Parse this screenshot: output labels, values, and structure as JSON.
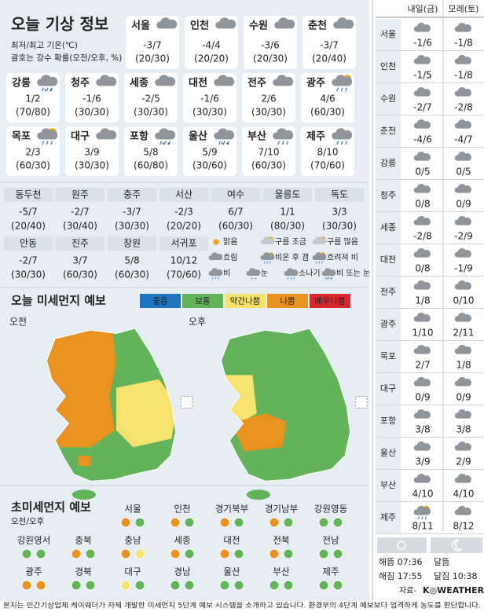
{
  "header": {
    "title": "오늘 기상 정보",
    "note1": "최저/최고 기온(℃)",
    "note2": "괄호는 강수 확률(오전/오후, %)"
  },
  "cities": [
    {
      "name": "서울",
      "temp": "-3/7",
      "rain": "(20/30)",
      "icon": "흐림"
    },
    {
      "name": "인천",
      "temp": "-4/4",
      "rain": "(20/20)",
      "icon": "흐림"
    },
    {
      "name": "수원",
      "temp": "-3/6",
      "rain": "(20/30)",
      "icon": "흐림"
    },
    {
      "name": "춘천",
      "temp": "-3/7",
      "rain": "(20/40)",
      "icon": "흐림"
    },
    {
      "name": "강릉",
      "temp": "1/2",
      "rain": "(70/80)",
      "icon": "비 또는 눈"
    },
    {
      "name": "청주",
      "temp": "-1/6",
      "rain": "(30/30)",
      "icon": "흐림"
    },
    {
      "name": "세종",
      "temp": "-2/5",
      "rain": "(30/30)",
      "icon": "흐림"
    },
    {
      "name": "대전",
      "temp": "-1/6",
      "rain": "(30/30)",
      "icon": "흐림"
    },
    {
      "name": "전주",
      "temp": "2/6",
      "rain": "(30/30)",
      "icon": "흐림"
    },
    {
      "name": "광주",
      "temp": "4/6",
      "rain": "(60/30)",
      "icon": "흐려져 비"
    },
    {
      "name": "목포",
      "temp": "2/3",
      "rain": "(60/30)",
      "icon": "흐려져 비"
    },
    {
      "name": "대구",
      "temp": "3/9",
      "rain": "(30/30)",
      "icon": "흐림"
    },
    {
      "name": "포항",
      "temp": "5/8",
      "rain": "(60/80)",
      "icon": "비 또는 눈"
    },
    {
      "name": "울산",
      "temp": "5/9",
      "rain": "(30/60)",
      "icon": "비 또는 눈"
    },
    {
      "name": "부산",
      "temp": "7/10",
      "rain": "(60/30)",
      "icon": "비"
    },
    {
      "name": "제주",
      "temp": "8/10",
      "rain": "(70/60)",
      "icon": "비"
    }
  ],
  "small_cities": [
    {
      "name": "동두천",
      "temp": "-5/7",
      "rain": "(20/40)"
    },
    {
      "name": "원주",
      "temp": "-2/7",
      "rain": "(30/40)"
    },
    {
      "name": "충주",
      "temp": "-3/7",
      "rain": "(30/30)"
    },
    {
      "name": "서산",
      "temp": "-2/3",
      "rain": "(20/20)"
    },
    {
      "name": "여수",
      "temp": "6/7",
      "rain": "(60/30)"
    },
    {
      "name": "울릉도",
      "temp": "1/1",
      "rain": "(80/30)"
    },
    {
      "name": "독도",
      "temp": "3/3",
      "rain": "(30/30)"
    },
    {
      "name": "안동",
      "temp": "-2/7",
      "rain": "(30/30)"
    },
    {
      "name": "진주",
      "temp": "3/7",
      "rain": "(60/30)"
    },
    {
      "name": "창원",
      "temp": "5/8",
      "rain": "(60/30)"
    },
    {
      "name": "서귀포",
      "temp": "10/12",
      "rain": "(70/60)"
    }
  ],
  "weather_legend": [
    "맑음",
    "구름 조금",
    "구름 많음",
    "흐림",
    "비온 후 갬",
    "흐려져 비",
    "비",
    "눈",
    "소나기",
    "비 또는 눈"
  ],
  "dust": {
    "title": "오늘 미세먼지 예보",
    "am": "오전",
    "pm": "오후",
    "levels": [
      {
        "name": "좋음",
        "color": "#1f74bf"
      },
      {
        "name": "보통",
        "color": "#62b35a"
      },
      {
        "name": "약간나쁨",
        "color": "#f6e36f"
      },
      {
        "name": "나쁨",
        "color": "#e8921f"
      },
      {
        "name": "매우나쁨",
        "color": "#d7282f"
      }
    ]
  },
  "ultrafine": {
    "title": "초미세먼지 예보",
    "subtitle": "오전/오후",
    "regions": [
      {
        "name": "서울",
        "am": "나쁨",
        "pm": "보통"
      },
      {
        "name": "인천",
        "am": "나쁨",
        "pm": "보통"
      },
      {
        "name": "경기북부",
        "am": "나쁨",
        "pm": "보통"
      },
      {
        "name": "경기남부",
        "am": "나쁨",
        "pm": "보통"
      },
      {
        "name": "강원영동",
        "am": "보통",
        "pm": "보통"
      },
      {
        "name": "강원영서",
        "am": "보통",
        "pm": "보통"
      },
      {
        "name": "충북",
        "am": "나쁨",
        "pm": "보통"
      },
      {
        "name": "충남",
        "am": "나쁨",
        "pm": "약간나쁨"
      },
      {
        "name": "세종",
        "am": "나쁨",
        "pm": "보통"
      },
      {
        "name": "대전",
        "am": "나쁨",
        "pm": "보통"
      },
      {
        "name": "전북",
        "am": "나쁨",
        "pm": "보통"
      },
      {
        "name": "전남",
        "am": "보통",
        "pm": "보통"
      },
      {
        "name": "광주",
        "am": "나쁨",
        "pm": "나쁨"
      },
      {
        "name": "경북",
        "am": "보통",
        "pm": "보통"
      },
      {
        "name": "대구",
        "am": "약간나쁨",
        "pm": "보통"
      },
      {
        "name": "경남",
        "am": "보통",
        "pm": "보통"
      },
      {
        "name": "울산",
        "am": "보통",
        "pm": "보통"
      },
      {
        "name": "부산",
        "am": "보통",
        "pm": "보통"
      },
      {
        "name": "제주",
        "am": "보통",
        "pm": "보통"
      }
    ]
  },
  "forecast": {
    "headers": [
      "내일(금)",
      "모레(토)"
    ],
    "rows": [
      {
        "name": "서울",
        "d1": "-1/6",
        "d2": "-1/8",
        "i1": "흐림",
        "i2": "흐림"
      },
      {
        "name": "인천",
        "d1": "-1/5",
        "d2": "-1/8",
        "i1": "흐림",
        "i2": "흐림"
      },
      {
        "name": "수원",
        "d1": "-2/7",
        "d2": "-2/8",
        "i1": "흐림",
        "i2": "흐림"
      },
      {
        "name": "춘천",
        "d1": "-4/6",
        "d2": "-4/7",
        "i1": "흐림",
        "i2": "흐림"
      },
      {
        "name": "강릉",
        "d1": "0/5",
        "d2": "0/5",
        "i1": "흐림",
        "i2": "흐림"
      },
      {
        "name": "청주",
        "d1": "0/8",
        "d2": "0/9",
        "i1": "흐림",
        "i2": "흐림"
      },
      {
        "name": "세종",
        "d1": "-2/8",
        "d2": "-2/9",
        "i1": "흐림",
        "i2": "흐림"
      },
      {
        "name": "대전",
        "d1": "0/8",
        "d2": "-1/9",
        "i1": "흐림",
        "i2": "흐림"
      },
      {
        "name": "전주",
        "d1": "1/8",
        "d2": "0/10",
        "i1": "흐림",
        "i2": "흐림"
      },
      {
        "name": "광주",
        "d1": "1/10",
        "d2": "2/11",
        "i1": "흐림",
        "i2": "흐림"
      },
      {
        "name": "목포",
        "d1": "2/7",
        "d2": "1/8",
        "i1": "흐림",
        "i2": "흐림"
      },
      {
        "name": "대구",
        "d1": "0/9",
        "d2": "0/9",
        "i1": "흐림",
        "i2": "흐림"
      },
      {
        "name": "포항",
        "d1": "3/8",
        "d2": "3/8",
        "i1": "흐림",
        "i2": "흐림"
      },
      {
        "name": "울산",
        "d1": "3/9",
        "d2": "2/9",
        "i1": "흐림",
        "i2": "흐림"
      },
      {
        "name": "부산",
        "d1": "4/10",
        "d2": "4/10",
        "i1": "흐림",
        "i2": "흐림"
      },
      {
        "name": "제주",
        "d1": "8/11",
        "d2": "8/12",
        "i1": "흐려져 비",
        "i2": "흐림"
      }
    ]
  },
  "sun_moon": {
    "sunrise": "해뜸 07:36",
    "sunset": "해짐 17:55",
    "moonrise": "달뜸",
    "moonset": "달짐 10:38"
  },
  "source": {
    "prefix": "자료-",
    "brand": "K◎WEATHER"
  },
  "footer": "본지는 민간기상업체 케이웨더가 자체 개발한 미세먼지 5단계 예보 시스템을 소개하고 있습니다. 환경부의 4단계 예보보다 엄격하게 농도를 판단합니다."
}
